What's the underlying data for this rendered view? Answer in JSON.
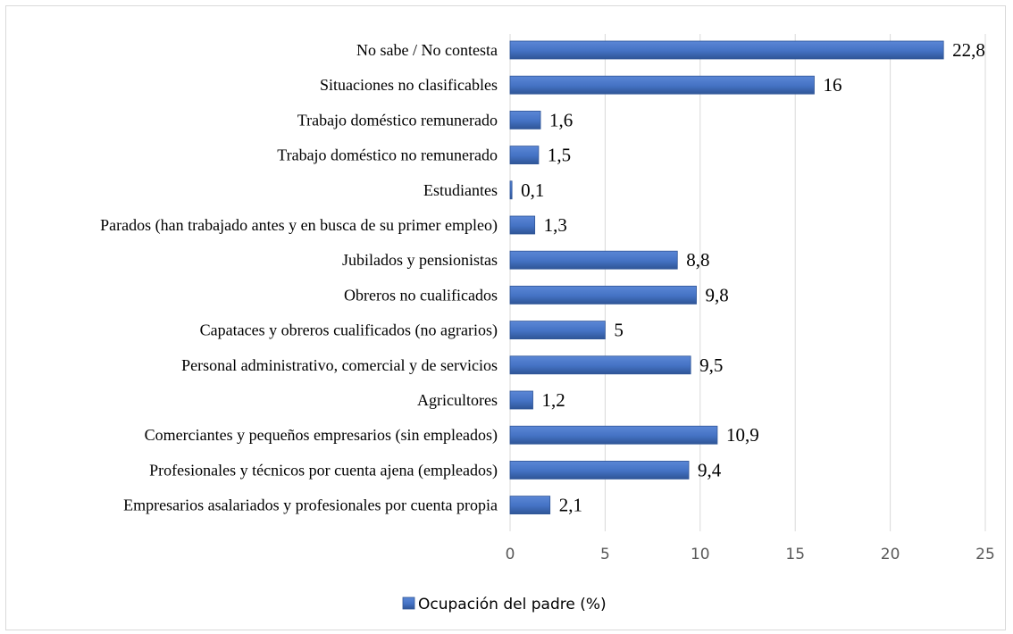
{
  "chart_data": {
    "type": "bar",
    "orientation": "horizontal",
    "categories": [
      "No sabe / No contesta",
      "Situaciones no clasificables",
      "Trabajo doméstico remunerado",
      "Trabajo doméstico no remunerado",
      "Estudiantes",
      "Parados (han trabajado antes y en busca de su primer empleo)",
      "Jubilados y pensionistas",
      "Obreros no cualificados",
      "Capataces y obreros cualificados (no agrarios)",
      "Personal administrativo, comercial y de servicios",
      "Agricultores",
      "Comerciantes y pequeños empresarios (sin empleados)",
      "Profesionales y técnicos por cuenta ajena (empleados)",
      "Empresarios asalariados y profesionales por cuenta propia"
    ],
    "series": [
      {
        "name": "Ocupación del padre (%)",
        "values": [
          22.8,
          16,
          1.6,
          1.5,
          0.1,
          1.3,
          8.8,
          9.8,
          5,
          9.5,
          1.2,
          10.9,
          9.4,
          2.1
        ],
        "data_labels": [
          "22,8",
          "16",
          "1,6",
          "1,5",
          "0,1",
          "1,3",
          "8,8",
          "9,8",
          "5",
          "9,5",
          "1,2",
          "10,9",
          "9,4",
          "2,1"
        ],
        "color": "#4472c4"
      }
    ],
    "xlim": [
      0,
      25
    ],
    "x_ticks": [
      0,
      5,
      10,
      15,
      20,
      25
    ],
    "grid": "vertical",
    "legend": "bottom-center",
    "title": "",
    "xlabel": "",
    "ylabel": ""
  }
}
